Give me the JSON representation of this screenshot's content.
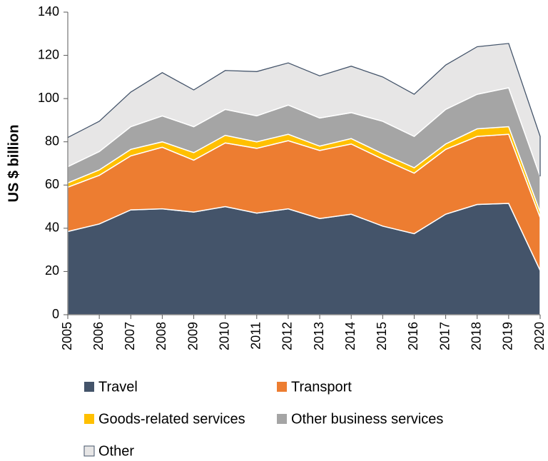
{
  "chart_data": {
    "type": "area",
    "stacked": true,
    "ylabel": "US $ billion",
    "categories": [
      "2005",
      "2006",
      "2007",
      "2008",
      "2009",
      "2010",
      "2011",
      "2012",
      "2013",
      "2014",
      "2015",
      "2016",
      "2017",
      "2018",
      "2019",
      "2020"
    ],
    "ylim": [
      0,
      140
    ],
    "yticks": [
      0,
      20,
      40,
      60,
      80,
      100,
      120,
      140
    ],
    "series": [
      {
        "name": "Travel",
        "color": "#44546a",
        "values": [
          38.5,
          42,
          48.5,
          49,
          47.5,
          50,
          47,
          49,
          44.5,
          46.5,
          41,
          37.5,
          46.5,
          51,
          51.5,
          20.5
        ]
      },
      {
        "name": "Transport",
        "color": "#ed7d31",
        "values": [
          20.5,
          22.5,
          25,
          28.5,
          24,
          29.5,
          30,
          31.5,
          31.5,
          32.5,
          31,
          28,
          30,
          31.5,
          32,
          24.5
        ]
      },
      {
        "name": "Goods-related services",
        "color": "#ffc000",
        "values": [
          2,
          2.5,
          3,
          2.5,
          3.5,
          3.5,
          3,
          3,
          2,
          2.5,
          2.5,
          2.5,
          2.5,
          3.5,
          3.5,
          2.5
        ]
      },
      {
        "name": "Other business services",
        "color": "#a5a5a5",
        "values": [
          7.5,
          8.5,
          10.5,
          12,
          12,
          12,
          12,
          13.5,
          13,
          12,
          15,
          14.5,
          16,
          16,
          18,
          16.5
        ]
      },
      {
        "name": "Other",
        "color": "#e7e6e6",
        "edgecolor": "#44546a",
        "values": [
          13.5,
          14,
          16,
          20,
          17,
          18,
          20.5,
          19.5,
          19.5,
          21.5,
          20.5,
          19.5,
          20.5,
          22,
          20.5,
          18.5
        ]
      }
    ]
  }
}
